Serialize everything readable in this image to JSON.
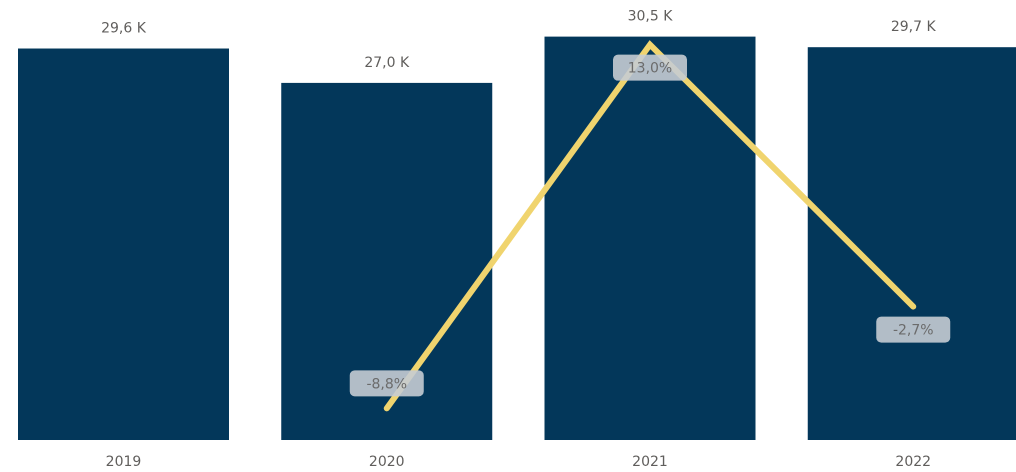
{
  "colors": {
    "bar": "#03375a",
    "line": "#f0d46e",
    "pill_bg": "#c5ccd3",
    "label_text": "#605e5c"
  },
  "chart_data": {
    "type": "bar",
    "categories": [
      "2019",
      "2020",
      "2021",
      "2022"
    ],
    "values": [
      29.6,
      27.0,
      30.5,
      29.7
    ],
    "value_labels": [
      "29,6 K",
      "27,0 K",
      "30,5 K",
      "29,7 K"
    ],
    "ylim": [
      0,
      31.0
    ],
    "grid": false,
    "legend": "none",
    "line_series": {
      "type": "line",
      "x": [
        "2020",
        "2021",
        "2022"
      ],
      "values": [
        -8.8,
        13.0,
        -2.7
      ],
      "labels": [
        "-8,8%",
        "13,0%",
        "-2,7%"
      ],
      "ylim": [
        -9.5,
        13.4
      ]
    }
  }
}
